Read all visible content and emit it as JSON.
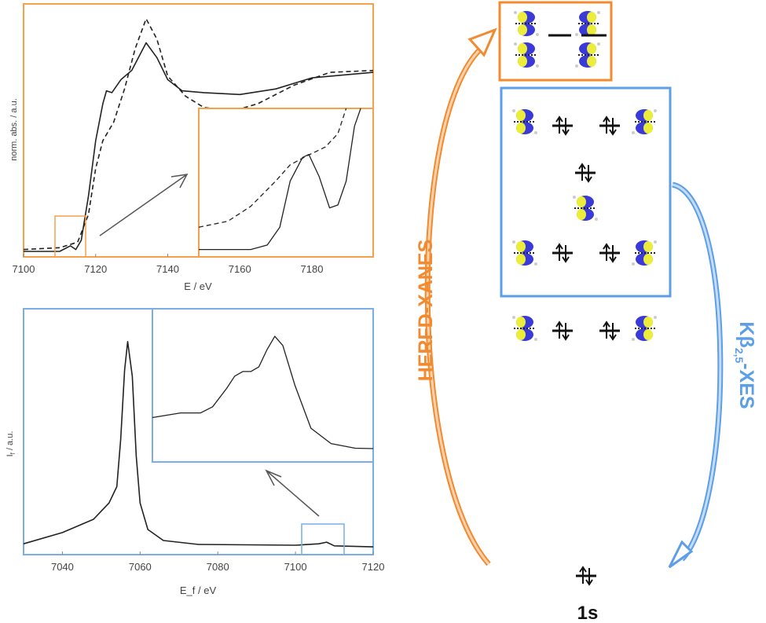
{
  "chart_data": [
    {
      "type": "line",
      "title": "",
      "xlabel": "E / eV",
      "ylabel": "norm. abs. / a.u.",
      "xlim": [
        7100,
        7197
      ],
      "xticks": [
        "7100",
        "7120",
        "7140",
        "7160",
        "7180"
      ],
      "grid": false,
      "frame_color": "#f5a04a",
      "series": [
        {
          "style": "solid",
          "x": [
            7100,
            7110,
            7113,
            7114.5,
            7116,
            7118,
            7120,
            7122,
            7123,
            7124.5,
            7127,
            7130,
            7134,
            7137,
            7140,
            7144,
            7150,
            7160,
            7170,
            7180,
            7197
          ],
          "y": [
            0,
            0,
            0.03,
            0.01,
            0.06,
            0.3,
            0.6,
            0.8,
            0.87,
            0.86,
            0.93,
            0.98,
            1.13,
            1.05,
            0.93,
            0.87,
            0.86,
            0.85,
            0.88,
            0.94,
            0.97
          ]
        },
        {
          "style": "dashed",
          "x": [
            7100,
            7110,
            7115,
            7118,
            7120,
            7122,
            7125,
            7128,
            7131,
            7134,
            7137,
            7140,
            7145,
            7150,
            7158,
            7165,
            7175,
            7185,
            7197
          ],
          "y": [
            0.01,
            0.02,
            0.05,
            0.2,
            0.45,
            0.6,
            0.7,
            0.88,
            1.1,
            1.26,
            1.15,
            0.95,
            0.84,
            0.78,
            0.76,
            0.8,
            0.9,
            0.97,
            0.98
          ]
        }
      ],
      "zoom_region_x": [
        7109.6,
        7118
      ],
      "inset": {
        "series": [
          {
            "style": "solid",
            "x": [
              7109.6,
              7112.1,
              7112.9,
              7113.5,
              7114.0,
              7114.6,
              7114.9,
              7115.4,
              7115.9,
              7116.3,
              7116.7,
              7117.1,
              7117.4
            ],
            "y": [
              0.05,
              0.05,
              0.08,
              0.2,
              0.51,
              0.67,
              0.69,
              0.54,
              0.33,
              0.35,
              0.51,
              0.88,
              1.0
            ]
          },
          {
            "style": "dashed",
            "x": [
              7109.6,
              7111.0,
              7112.1,
              7113.3,
              7114.0,
              7114.8,
              7115.7,
              7116.3,
              7116.7
            ],
            "y": [
              0.2,
              0.24,
              0.34,
              0.51,
              0.62,
              0.68,
              0.74,
              0.83,
              1.0
            ]
          }
        ]
      }
    },
    {
      "type": "line",
      "title": "",
      "xlabel": "E_f / eV",
      "xlabel_main": "E",
      "xlabel_sub": "f",
      "xlabel_rest": " / eV",
      "ylabel_main": "I",
      "ylabel_sub": "f",
      "ylabel_rest": " / a.u.",
      "xlim": [
        7030,
        7120
      ],
      "xticks": [
        "7040",
        "7060",
        "7080",
        "7100",
        "7120"
      ],
      "grid": false,
      "frame_color": "#7aaee8",
      "series": [
        {
          "style": "solid",
          "x": [
            7030,
            7040,
            7048,
            7052,
            7054,
            7055,
            7056,
            7056.8,
            7058,
            7059,
            7060,
            7062,
            7066,
            7075,
            7100,
            7106,
            7108,
            7110,
            7120
          ],
          "y": [
            0.03,
            0.085,
            0.15,
            0.23,
            0.31,
            0.54,
            0.88,
            1.02,
            0.85,
            0.46,
            0.23,
            0.1,
            0.046,
            0.027,
            0.023,
            0.03,
            0.038,
            0.02,
            0.015
          ]
        }
      ],
      "zoom_region_x": [
        7102,
        7113
      ],
      "inset": {
        "series": [
          {
            "style": "solid",
            "x": [
              7102,
              7103.4,
              7104.4,
              7105.0,
              7105.7,
              7106.1,
              7106.5,
              7106.9,
              7107.3,
              7107.7,
              7108.1,
              7108.5,
              7109.1,
              7109.9,
              7110.9,
              7112.1,
              7113
            ],
            "y": [
              0.29,
              0.32,
              0.32,
              0.36,
              0.48,
              0.56,
              0.59,
              0.59,
              0.62,
              0.73,
              0.82,
              0.76,
              0.5,
              0.22,
              0.12,
              0.09,
              0.087
            ]
          }
        ]
      }
    }
  ],
  "diagram": {
    "left_label": "HERFD-XANES",
    "right_label_main": "Kβ",
    "right_label_sub": "2,5",
    "right_label_rest": "-XES",
    "core_label": "1s",
    "orange": "#f28a30",
    "blue": "#5c9ee8",
    "orbital_yellow": "#ecec3a",
    "orbital_blue": "#3a3ad8"
  }
}
